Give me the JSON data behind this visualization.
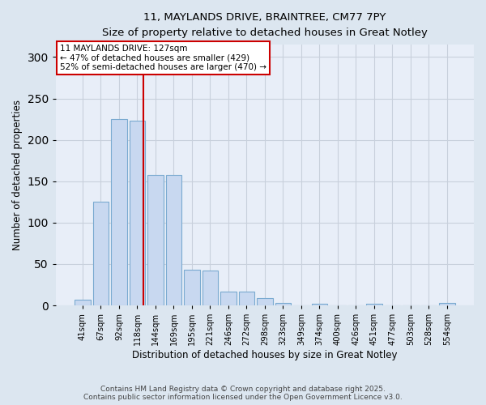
{
  "title_line1": "11, MAYLANDS DRIVE, BRAINTREE, CM77 7PY",
  "title_line2": "Size of property relative to detached houses in Great Notley",
  "xlabel": "Distribution of detached houses by size in Great Notley",
  "ylabel": "Number of detached properties",
  "bar_labels": [
    "41sqm",
    "67sqm",
    "92sqm",
    "118sqm",
    "144sqm",
    "169sqm",
    "195sqm",
    "221sqm",
    "246sqm",
    "272sqm",
    "298sqm",
    "323sqm",
    "349sqm",
    "374sqm",
    "400sqm",
    "426sqm",
    "451sqm",
    "477sqm",
    "503sqm",
    "528sqm",
    "554sqm"
  ],
  "bar_values": [
    7,
    125,
    225,
    223,
    158,
    158,
    43,
    42,
    17,
    17,
    9,
    3,
    0,
    2,
    0,
    0,
    2,
    0,
    0,
    0,
    3
  ],
  "bar_color": "#c8d8f0",
  "bar_edgecolor": "#7aaad0",
  "grid_color": "#c8d0dc",
  "vline_color": "#cc0000",
  "annotation_line1": "11 MAYLANDS DRIVE: 127sqm",
  "annotation_line2": "← 47% of detached houses are smaller (429)",
  "annotation_line3": "52% of semi-detached houses are larger (470) →",
  "annotation_box_color": "#ffffff",
  "annotation_box_edgecolor": "#cc0000",
  "footer_line1": "Contains HM Land Registry data © Crown copyright and database right 2025.",
  "footer_line2": "Contains public sector information licensed under the Open Government Licence v3.0.",
  "ylim": [
    0,
    315
  ],
  "yticks": [
    0,
    50,
    100,
    150,
    200,
    250,
    300
  ],
  "background_color": "#dce6f0",
  "plot_bg_color": "#e8eef8"
}
